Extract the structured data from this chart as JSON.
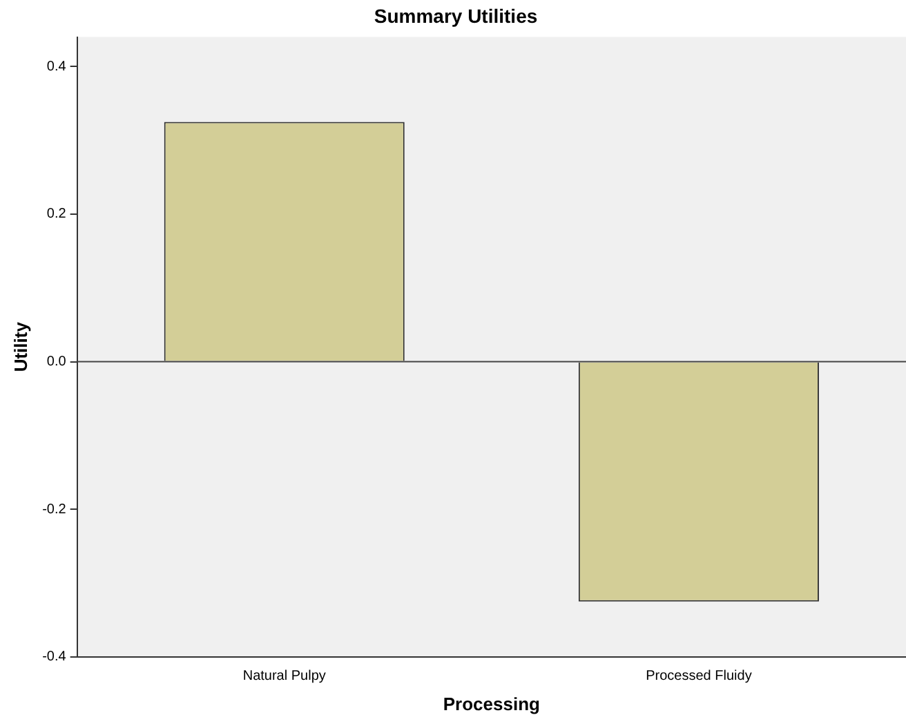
{
  "chart_data": {
    "type": "bar",
    "title": "Summary Utilities",
    "xlabel": "Processing",
    "ylabel": "Utility",
    "categories": [
      "Natural Pulpy",
      "Processed Fluidy"
    ],
    "values": [
      0.325,
      -0.325
    ],
    "color": "#d3ce97",
    "ylim": [
      -0.4,
      0.44
    ],
    "yticks": [
      {
        "value": -0.4,
        "label": "-0.4"
      },
      -0.2,
      {
        "value": 0,
        "label": "0.0"
      },
      0.2,
      0.4
    ],
    "ref_lines": [
      {
        "axis": "y",
        "value": 0,
        "color": "#444444"
      }
    ],
    "grid": false,
    "legend": false
  }
}
